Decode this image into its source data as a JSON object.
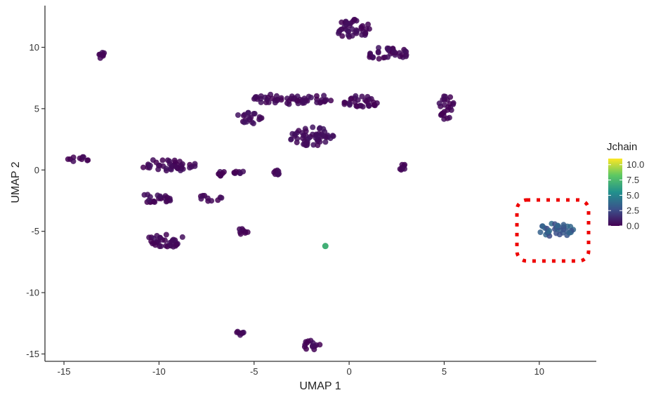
{
  "chart_data": {
    "type": "scatter",
    "xlabel": "UMAP 1",
    "ylabel": "UMAP 2",
    "xlim": [
      -16,
      13
    ],
    "ylim": [
      -15.6,
      13.4
    ],
    "x_ticks": [
      -15,
      -10,
      -5,
      0,
      5,
      10
    ],
    "y_ticks": [
      -15,
      -10,
      -5,
      0,
      5,
      10
    ],
    "x_tick_labels": [
      "-15",
      "-10",
      "-5",
      "0",
      "5",
      "10"
    ],
    "y_tick_labels": [
      "-15",
      "-10",
      "-5",
      "0",
      "5",
      "10"
    ],
    "grid": false,
    "color_variable": "Jchain",
    "legend": {
      "title": "Jchain",
      "placement": "right",
      "range": [
        0,
        11
      ],
      "ticks": [
        0.0,
        2.5,
        5.0,
        7.5,
        10.0
      ],
      "tick_labels": [
        "0.0",
        "2.5",
        "5.0",
        "7.5",
        "10.0"
      ],
      "colors": [
        "#440154",
        "#3b528b",
        "#21908d",
        "#5dc863",
        "#fde725"
      ]
    },
    "highlight": {
      "shape": "dotted-rounded-rectangle",
      "color": "#ee0000",
      "x_range": [
        9.0,
        12.6
      ],
      "y_range": [
        -7.5,
        -2.5
      ]
    },
    "clusters": [
      {
        "cx": 0.2,
        "cy": 11.5,
        "rx": 0.9,
        "ry": 0.8,
        "value": 0.3
      },
      {
        "cx": 2.0,
        "cy": 9.5,
        "rx": 1.2,
        "ry": 0.5,
        "value": 0.3
      },
      {
        "cx": -13.0,
        "cy": 9.3,
        "rx": 0.2,
        "ry": 0.3,
        "value": 0.2
      },
      {
        "cx": -3.0,
        "cy": 5.8,
        "rx": 2.2,
        "ry": 0.45,
        "value": 0.3
      },
      {
        "cx": -5.3,
        "cy": 4.2,
        "rx": 0.7,
        "ry": 0.5,
        "value": 0.4
      },
      {
        "cx": 0.7,
        "cy": 5.6,
        "rx": 1.1,
        "ry": 0.5,
        "value": 0.3
      },
      {
        "cx": 5.1,
        "cy": 5.2,
        "rx": 0.4,
        "ry": 1.1,
        "value": 0.2
      },
      {
        "cx": -2.0,
        "cy": 2.7,
        "rx": 1.2,
        "ry": 0.8,
        "value": 0.4
      },
      {
        "cx": -14.2,
        "cy": 0.9,
        "rx": 0.6,
        "ry": 0.3,
        "value": 0.2
      },
      {
        "cx": -9.5,
        "cy": 0.4,
        "rx": 1.5,
        "ry": 0.5,
        "value": 0.3
      },
      {
        "cx": -10.2,
        "cy": -2.3,
        "rx": 1.0,
        "ry": 0.4,
        "value": 0.3
      },
      {
        "cx": -7.3,
        "cy": -2.3,
        "rx": 0.6,
        "ry": 0.3,
        "value": 0.2
      },
      {
        "cx": -6.7,
        "cy": -0.3,
        "rx": 0.25,
        "ry": 0.2,
        "value": 0.2
      },
      {
        "cx": -5.8,
        "cy": -0.2,
        "rx": 0.25,
        "ry": 0.2,
        "value": 0.2
      },
      {
        "cx": -3.8,
        "cy": -0.2,
        "rx": 0.25,
        "ry": 0.25,
        "value": 0.2
      },
      {
        "cx": 2.8,
        "cy": 0.2,
        "rx": 0.2,
        "ry": 0.3,
        "value": 0.2
      },
      {
        "cx": -9.6,
        "cy": -5.7,
        "rx": 1.0,
        "ry": 0.6,
        "value": 0.3
      },
      {
        "cx": -5.6,
        "cy": -5.0,
        "rx": 0.3,
        "ry": 0.25,
        "value": 0.2
      },
      {
        "cx": -5.8,
        "cy": -13.3,
        "rx": 0.3,
        "ry": 0.2,
        "value": 0.2
      },
      {
        "cx": -2.0,
        "cy": -14.3,
        "rx": 0.6,
        "ry": 0.4,
        "value": 0.2
      },
      {
        "cx": 10.8,
        "cy": -4.9,
        "rx": 1.0,
        "ry": 0.6,
        "value": 3.2
      }
    ],
    "points": [
      {
        "x": -1.25,
        "y": -6.2,
        "value": 7.0
      }
    ]
  }
}
